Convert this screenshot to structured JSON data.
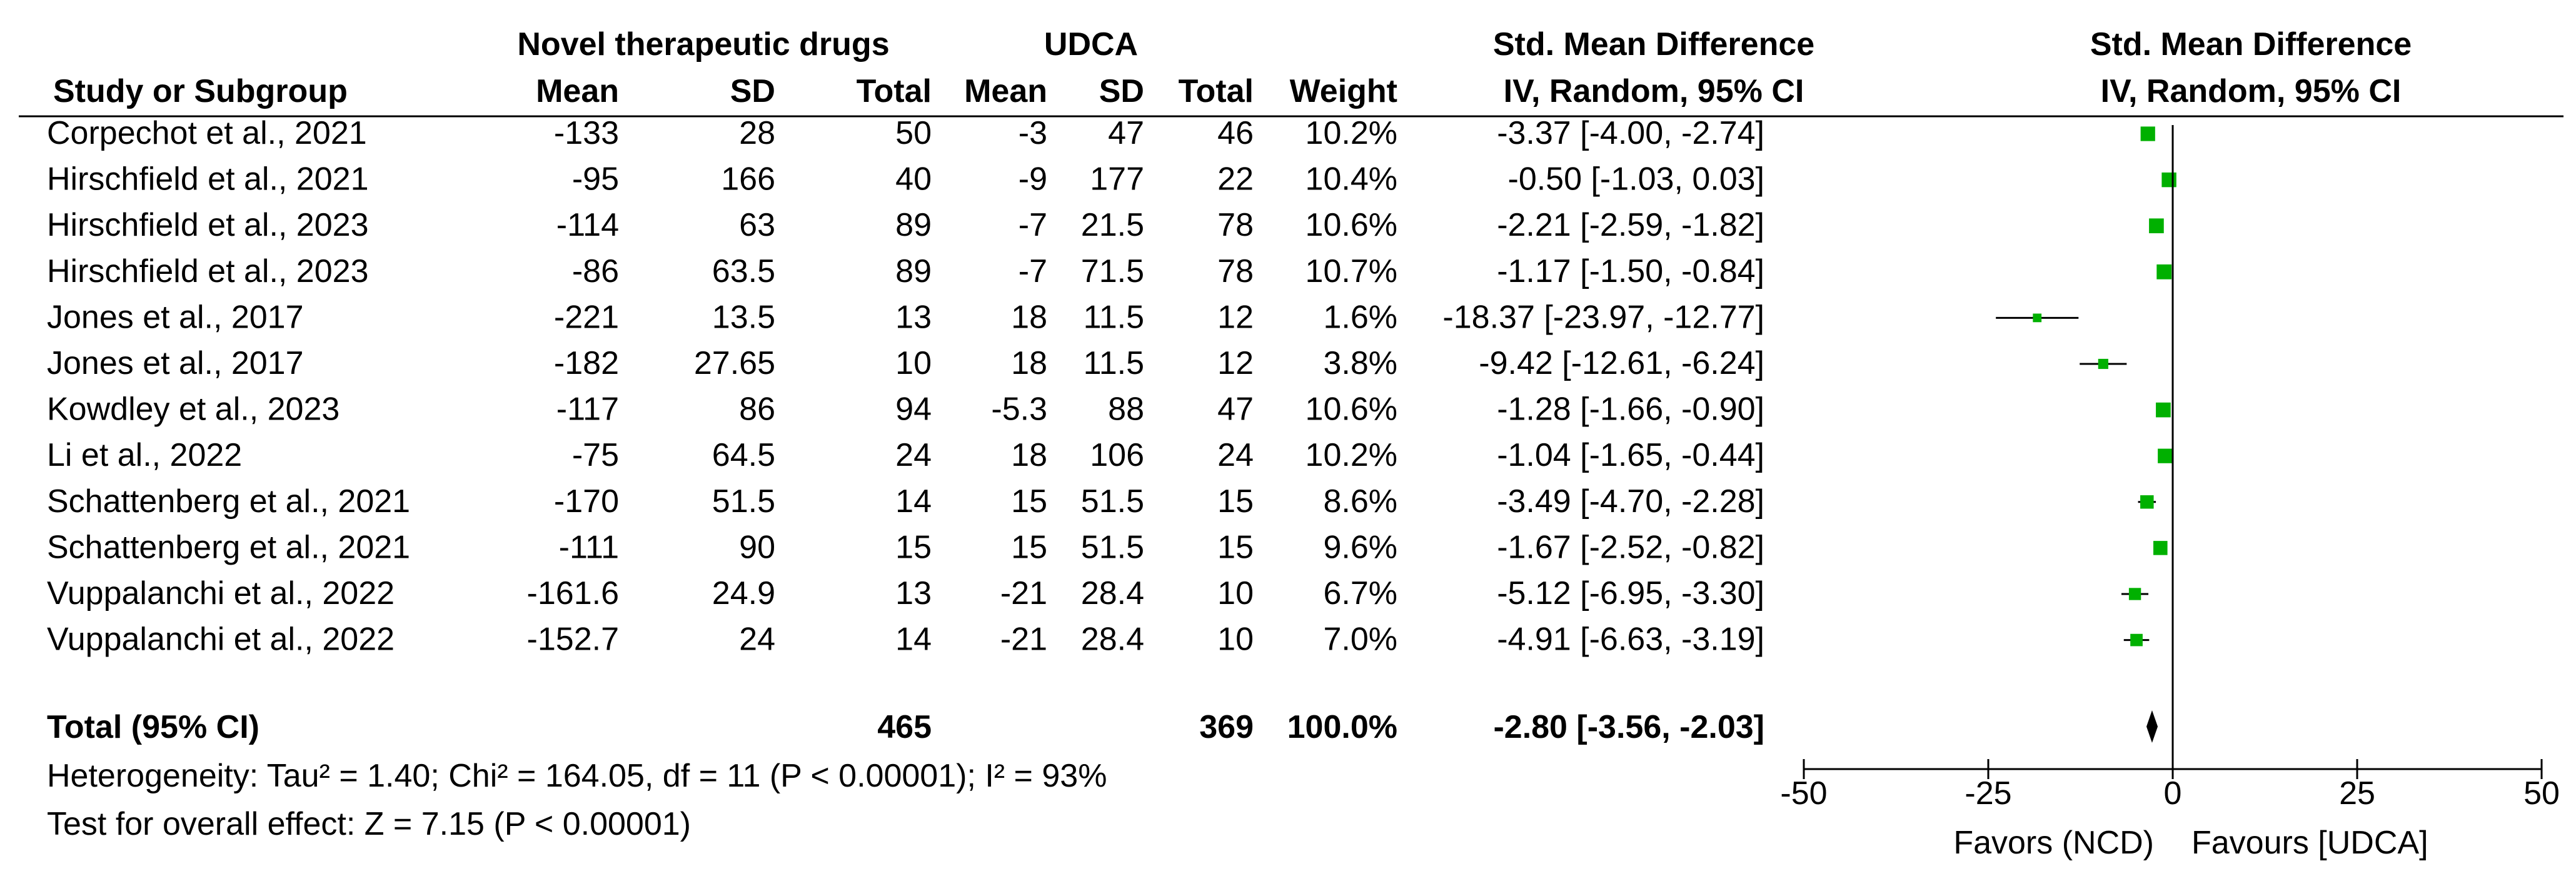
{
  "table": {
    "group_header_experimental": "Novel therapeutic drugs",
    "group_header_control": "UDCA",
    "effect_header_line1": "Std. Mean Difference",
    "effect_header_line2": "IV, Random, 95% CI",
    "plot_header_line1": "Std. Mean Difference",
    "plot_header_line2": "IV, Random, 95% CI",
    "columns": {
      "study": "Study or Subgroup",
      "exp_mean": "Mean",
      "exp_sd": "SD",
      "exp_total": "Total",
      "ctl_mean": "Mean",
      "ctl_sd": "SD",
      "ctl_total": "Total",
      "weight": "Weight"
    }
  },
  "chart_data": {
    "type": "forest",
    "studies": [
      {
        "study": "Corpechot et al., 2021",
        "exp_mean": "-133",
        "exp_sd": "28",
        "exp_total": "50",
        "ctl_mean": "-3",
        "ctl_sd": "47",
        "ctl_total": "46",
        "weight": "10.2%",
        "ci_text": "-3.37 [-4.00, -2.74]",
        "smd": -3.37,
        "lower": -4.0,
        "upper": -2.74
      },
      {
        "study": "Hirschfield et al., 2021",
        "exp_mean": "-95",
        "exp_sd": "166",
        "exp_total": "40",
        "ctl_mean": "-9",
        "ctl_sd": "177",
        "ctl_total": "22",
        "weight": "10.4%",
        "ci_text": "-0.50 [-1.03, 0.03]",
        "smd": -0.5,
        "lower": -1.03,
        "upper": 0.03
      },
      {
        "study": "Hirschfield et al., 2023",
        "exp_mean": "-114",
        "exp_sd": "63",
        "exp_total": "89",
        "ctl_mean": "-7",
        "ctl_sd": "21.5",
        "ctl_total": "78",
        "weight": "10.6%",
        "ci_text": "-2.21 [-2.59, -1.82]",
        "smd": -2.21,
        "lower": -2.59,
        "upper": -1.82
      },
      {
        "study": "Hirschfield et al., 2023",
        "exp_mean": "-86",
        "exp_sd": "63.5",
        "exp_total": "89",
        "ctl_mean": "-7",
        "ctl_sd": "71.5",
        "ctl_total": "78",
        "weight": "10.7%",
        "ci_text": "-1.17 [-1.50, -0.84]",
        "smd": -1.17,
        "lower": -1.5,
        "upper": -0.84
      },
      {
        "study": "Jones et al., 2017",
        "exp_mean": "-221",
        "exp_sd": "13.5",
        "exp_total": "13",
        "ctl_mean": "18",
        "ctl_sd": "11.5",
        "ctl_total": "12",
        "weight": "1.6%",
        "ci_text": "-18.37 [-23.97, -12.77]",
        "smd": -18.37,
        "lower": -23.97,
        "upper": -12.77
      },
      {
        "study": "Jones et al., 2017",
        "exp_mean": "-182",
        "exp_sd": "27.65",
        "exp_total": "10",
        "ctl_mean": "18",
        "ctl_sd": "11.5",
        "ctl_total": "12",
        "weight": "3.8%",
        "ci_text": "-9.42 [-12.61, -6.24]",
        "smd": -9.42,
        "lower": -12.61,
        "upper": -6.24
      },
      {
        "study": "Kowdley et al., 2023",
        "exp_mean": "-117",
        "exp_sd": "86",
        "exp_total": "94",
        "ctl_mean": "-5.3",
        "ctl_sd": "88",
        "ctl_total": "47",
        "weight": "10.6%",
        "ci_text": "-1.28 [-1.66, -0.90]",
        "smd": -1.28,
        "lower": -1.66,
        "upper": -0.9
      },
      {
        "study": "Li et al., 2022",
        "exp_mean": "-75",
        "exp_sd": "64.5",
        "exp_total": "24",
        "ctl_mean": "18",
        "ctl_sd": "106",
        "ctl_total": "24",
        "weight": "10.2%",
        "ci_text": "-1.04 [-1.65, -0.44]",
        "smd": -1.04,
        "lower": -1.65,
        "upper": -0.44
      },
      {
        "study": "Schattenberg et al., 2021",
        "exp_mean": "-170",
        "exp_sd": "51.5",
        "exp_total": "14",
        "ctl_mean": "15",
        "ctl_sd": "51.5",
        "ctl_total": "15",
        "weight": "8.6%",
        "ci_text": "-3.49 [-4.70, -2.28]",
        "smd": -3.49,
        "lower": -4.7,
        "upper": -2.28
      },
      {
        "study": "Schattenberg et al., 2021",
        "exp_mean": "-111",
        "exp_sd": "90",
        "exp_total": "15",
        "ctl_mean": "15",
        "ctl_sd": "51.5",
        "ctl_total": "15",
        "weight": "9.6%",
        "ci_text": "-1.67 [-2.52, -0.82]",
        "smd": -1.67,
        "lower": -2.52,
        "upper": -0.82
      },
      {
        "study": "Vuppalanchi et al., 2022",
        "exp_mean": "-161.6",
        "exp_sd": "24.9",
        "exp_total": "13",
        "ctl_mean": "-21",
        "ctl_sd": "28.4",
        "ctl_total": "10",
        "weight": "6.7%",
        "ci_text": "-5.12 [-6.95, -3.30]",
        "smd": -5.12,
        "lower": -6.95,
        "upper": -3.3
      },
      {
        "study": "Vuppalanchi et al., 2022",
        "exp_mean": "-152.7",
        "exp_sd": "24",
        "exp_total": "14",
        "ctl_mean": "-21",
        "ctl_sd": "28.4",
        "ctl_total": "10",
        "weight": "7.0%",
        "ci_text": "-4.91 [-6.63, -3.19]",
        "smd": -4.91,
        "lower": -6.63,
        "upper": -3.19
      }
    ],
    "total": {
      "label": "Total (95% CI)",
      "exp_total": "465",
      "ctl_total": "369",
      "weight": "100.0%",
      "ci_text": "-2.80 [-3.56, -2.03]",
      "smd": -2.8,
      "lower": -3.56,
      "upper": -2.03
    },
    "heterogeneity": "Heterogeneity: Tau² = 1.40; Chi² = 164.05, df = 11 (P < 0.00001); I² = 93%",
    "overall_effect": "Test for overall effect: Z = 7.15 (P < 0.00001)",
    "x_axis": {
      "ticks": [
        -50,
        -25,
        0,
        25,
        50
      ],
      "tick_labels": [
        "-50",
        "-25",
        "0",
        "25",
        "50"
      ],
      "xlim": [
        -50,
        50
      ]
    },
    "favours_left": "Favors (NCD)",
    "favours_right": "Favours [UDCA]",
    "marker_color": "#00b000",
    "line_color": "#000000"
  }
}
